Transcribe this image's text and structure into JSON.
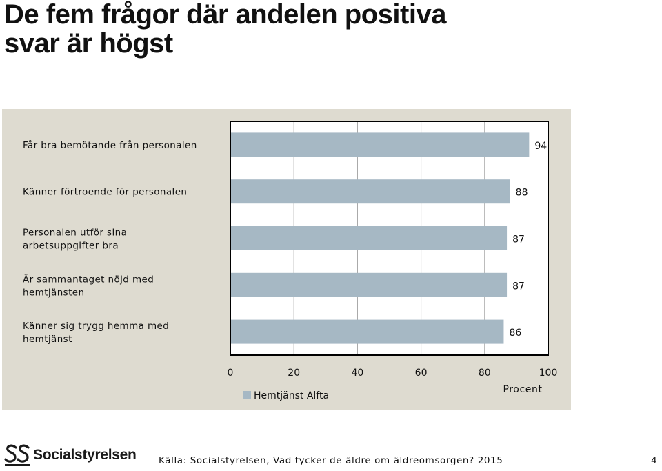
{
  "slide": {
    "title_line1": "De fem frågor där andelen positiva",
    "title_line2": "svar är högst",
    "source": "Källa: Socialstyrelsen, Vad tycker de äldre om äldreomsorgen? 2015",
    "page_number": "4"
  },
  "logo": {
    "name": "Socialstyrelsen",
    "icon": "socialstyrelsen-logo-icon"
  },
  "chart_data": {
    "type": "bar",
    "orientation": "horizontal",
    "categories": [
      [
        "Får bra bemötande från personalen"
      ],
      [
        "Känner förtroende för personalen"
      ],
      [
        "Personalen utför sina",
        "arbetsuppgifter bra"
      ],
      [
        "Är sammantaget nöjd med",
        "hemtjänsten"
      ],
      [
        "Känner sig trygg hemma med",
        "hemtjänst"
      ]
    ],
    "series": [
      {
        "name": "Hemtjänst Alfta",
        "values": [
          94,
          88,
          87,
          87,
          86
        ],
        "color": "#a6b8c4"
      }
    ],
    "xlim": [
      0,
      100
    ],
    "xticks": [
      "0",
      "20",
      "40",
      "60",
      "80",
      "100"
    ],
    "xlabel": "Procent",
    "grid": true,
    "legend_position": "bottom-left",
    "colors": {
      "panel_background": "#dedbd0",
      "plot_background": "#ffffff",
      "gridline": "#a0a0a0",
      "axis_border": "#000000"
    }
  }
}
